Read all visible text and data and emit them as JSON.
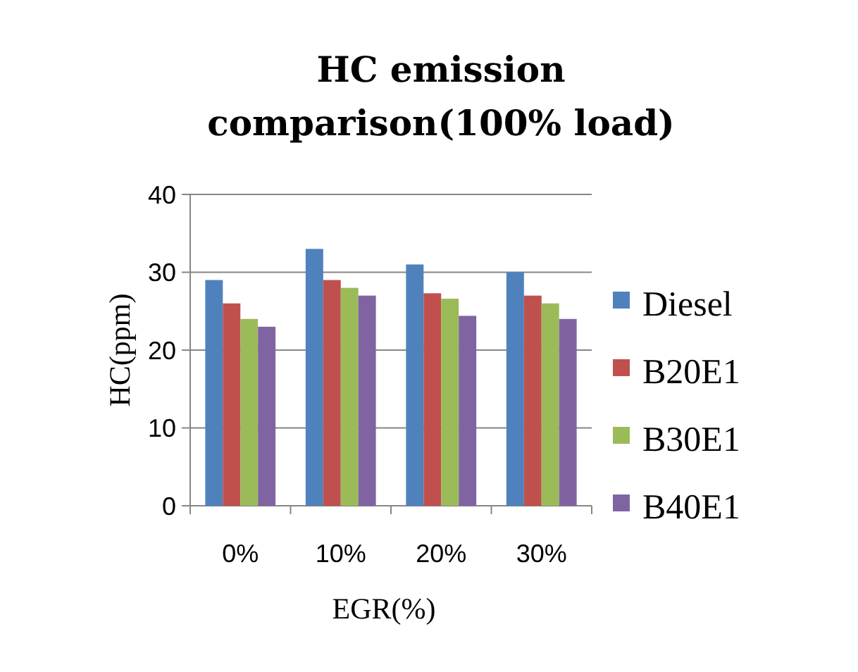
{
  "chart_data": {
    "type": "bar",
    "title": "HC emission comparison(100% load)",
    "xlabel": "EGR(%)",
    "ylabel": "HC(ppm)",
    "categories": [
      "0%",
      "10%",
      "20%",
      "30%"
    ],
    "series": [
      {
        "name": "Diesel",
        "color": "#4f81bd",
        "values": [
          29,
          33,
          31,
          30
        ]
      },
      {
        "name": "B20E1",
        "color": "#c0504d",
        "values": [
          26,
          29,
          27.3,
          27
        ]
      },
      {
        "name": "B30E1",
        "color": "#9bbb59",
        "values": [
          24,
          28,
          26.6,
          26
        ]
      },
      {
        "name": "B40E1",
        "color": "#8064a2",
        "values": [
          23,
          27,
          24.4,
          24
        ]
      }
    ],
    "ylim": [
      0,
      40
    ],
    "yticks": [
      0,
      10,
      20,
      30,
      40
    ],
    "grid": "y",
    "legend": "right"
  }
}
